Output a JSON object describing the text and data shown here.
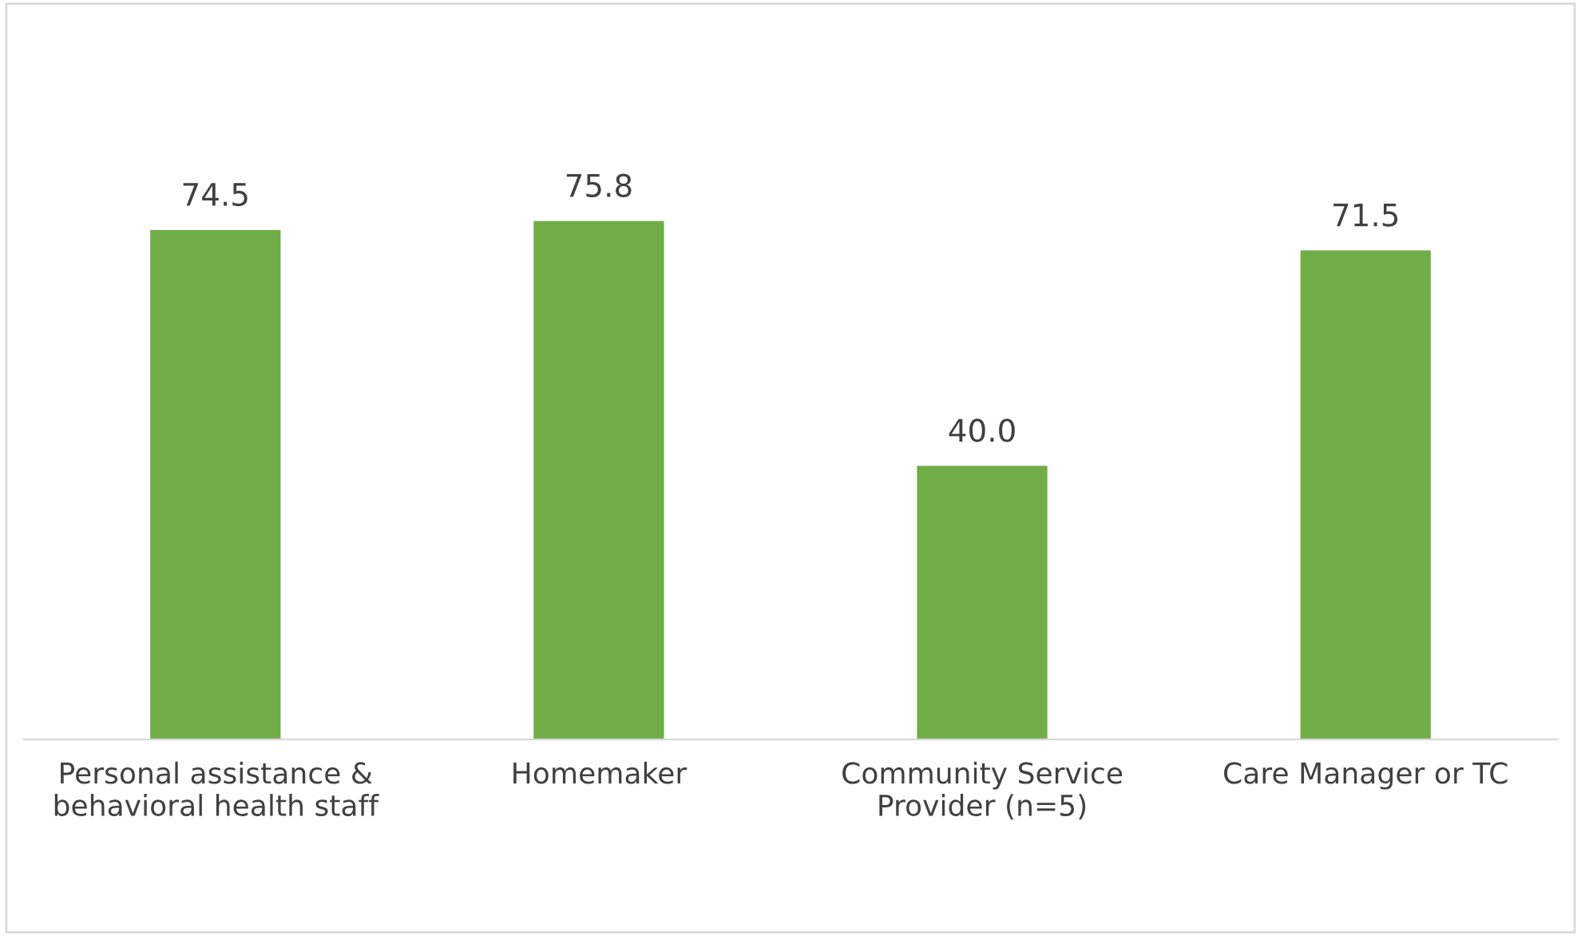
{
  "chart_data": {
    "type": "bar",
    "categories": [
      "Personal assistance &\nbehavioral health staff",
      "Homemaker",
      "Community Service\nProvider (n=5)",
      "Care Manager or TC"
    ],
    "values": [
      74.5,
      75.8,
      40.0,
      71.5
    ],
    "color": "#70ad47",
    "value_labels": [
      "74.5",
      "75.8",
      "40.0",
      "71.5"
    ],
    "grid": false,
    "legend": false
  }
}
